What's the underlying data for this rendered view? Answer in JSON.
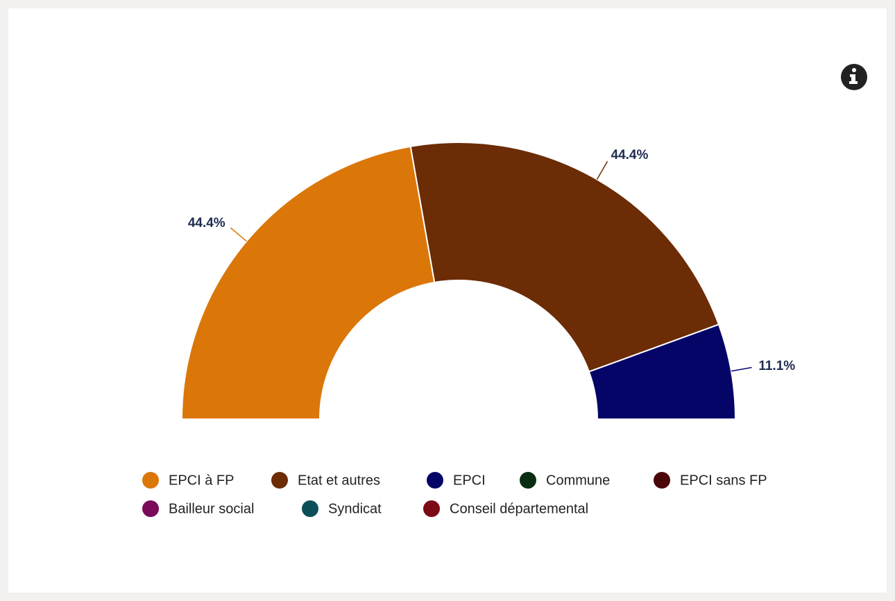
{
  "chart_data": {
    "type": "pie",
    "semicircle": true,
    "donut": true,
    "categories": [
      "EPCI à FP",
      "Etat et autres",
      "EPCI",
      "Commune",
      "EPCI sans FP",
      "Bailleur social",
      "Syndicat",
      "Conseil départemental"
    ],
    "values": [
      44.4,
      44.4,
      11.1,
      0,
      0,
      0,
      0,
      0
    ],
    "value_labels": [
      "44.4%",
      "44.4%",
      "11.1%",
      null,
      null,
      null,
      null,
      null
    ],
    "colors": [
      "#db7609",
      "#6b2c06",
      "#050568",
      "#0a2e12",
      "#4a0606",
      "#7a0a5a",
      "#0b4f5a",
      "#7a0a16"
    ]
  }
}
